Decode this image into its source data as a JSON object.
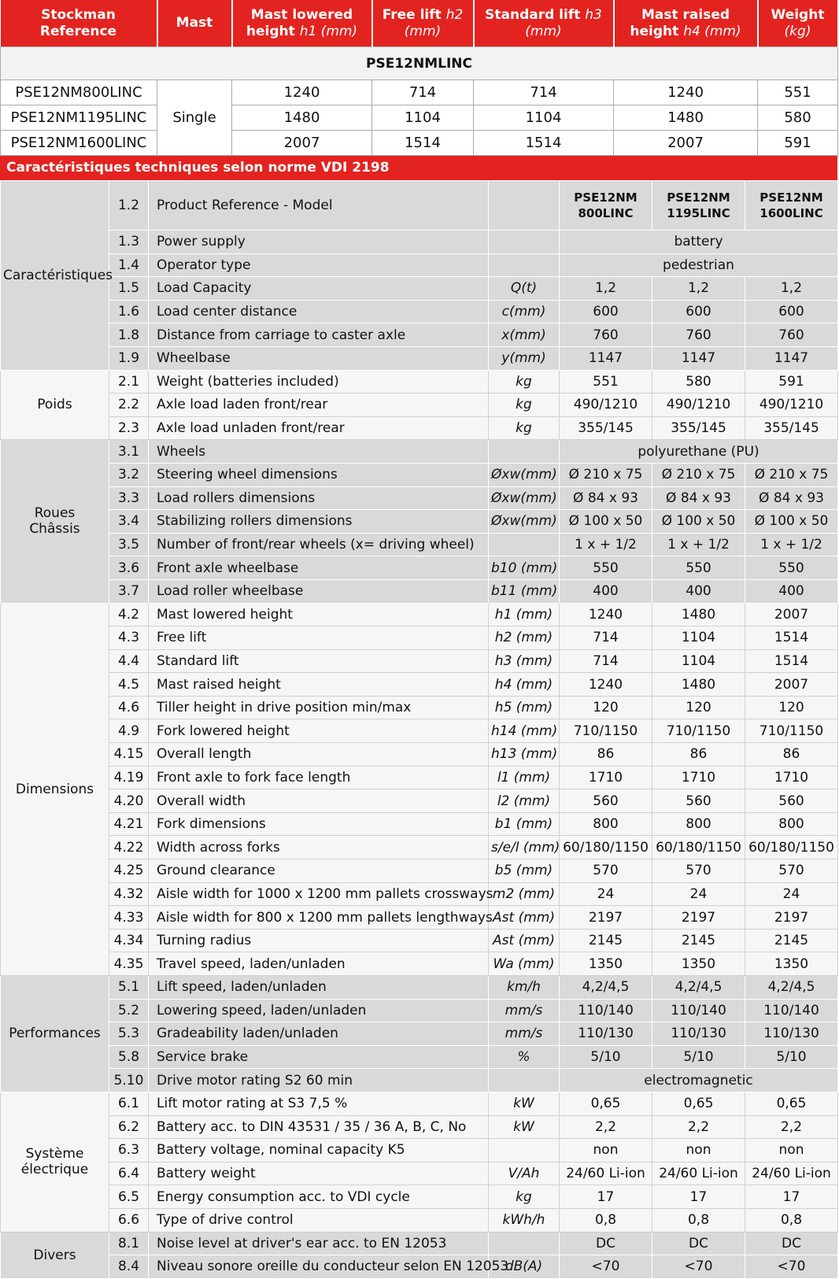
{
  "header": {
    "columns": [
      {
        "title": "Stockman Reference"
      },
      {
        "title": "Mast"
      },
      {
        "title": "Mast lowered height",
        "unit": "h1 (mm)"
      },
      {
        "title": "Free lift",
        "unit": "h2 (mm)"
      },
      {
        "title": "Standard lift",
        "unit": "h3 (mm)"
      },
      {
        "title": "Mast raised height",
        "unit": "h4 (mm)"
      },
      {
        "title": "Weight",
        "unit": "(kg)"
      }
    ]
  },
  "models": {
    "section": "PSE12NMLINC",
    "mast": "Single",
    "rows": [
      {
        "reference": "PSE12NM800LINC",
        "values": [
          "1240",
          "714",
          "714",
          "1240",
          "551"
        ]
      },
      {
        "reference": "PSE12NM1195LINC",
        "values": [
          "1480",
          "1104",
          "1104",
          "1480",
          "580"
        ]
      },
      {
        "reference": "PSE12NM1600LINC",
        "values": [
          "2007",
          "1514",
          "1514",
          "2007",
          "591"
        ]
      }
    ]
  },
  "specs": {
    "title": "Caractéristiques techniques selon norme VDI 2198",
    "groups": [
      {
        "name": "Caractéristiques",
        "rows": [
          {
            "no": "1.2",
            "label": "Product Reference - Model",
            "values": [
              "PSE12NM 800LINC",
              "PSE12NM 1195LINC",
              "PSE12NM 1600LINC"
            ]
          },
          {
            "no": "1.3",
            "label": "Power supply",
            "values": [
              "battery"
            ]
          },
          {
            "no": "1.4",
            "label": "Operator type",
            "values": [
              "pedestrian"
            ]
          },
          {
            "no": "1.5",
            "label": "Load Capacity",
            "unit": "Q(t)",
            "values": [
              "1,2",
              "1,2",
              "1,2"
            ]
          },
          {
            "no": "1.6",
            "label": "Load center distance",
            "unit": "c(mm)",
            "values": [
              "600",
              "600",
              "600"
            ]
          },
          {
            "no": "1.8",
            "label": "Distance from carriage to caster axle",
            "unit": "x(mm)",
            "values": [
              "760",
              "760",
              "760"
            ]
          },
          {
            "no": "1.9",
            "label": "Wheelbase",
            "unit": "y(mm)",
            "values": [
              "1147",
              "1147",
              "1147"
            ]
          }
        ]
      },
      {
        "name": "Poids",
        "rows": [
          {
            "no": "2.1",
            "label": "Weight (batteries included)",
            "unit": "kg",
            "values": [
              "551",
              "580",
              "591"
            ]
          },
          {
            "no": "2.2",
            "label": "Axle load laden front/rear",
            "unit": "kg",
            "values": [
              "490/1210",
              "490/1210",
              "490/1210"
            ]
          },
          {
            "no": "2.3",
            "label": "Axle load unladen front/rear",
            "unit": "kg",
            "values": [
              "355/145",
              "355/145",
              "355/145"
            ]
          }
        ]
      },
      {
        "name": "Roues\nChâssis",
        "rows": [
          {
            "no": "3.1",
            "label": "Wheels",
            "values": [
              "polyurethane (PU)"
            ]
          },
          {
            "no": "3.2",
            "label": "Steering wheel dimensions",
            "unit": "Øxw(mm)",
            "values": [
              "Ø 210 x 75",
              "Ø 210 x 75",
              "Ø 210 x 75"
            ]
          },
          {
            "no": "3.3",
            "label": "Load rollers dimensions",
            "unit": "Øxw(mm)",
            "values": [
              "Ø 84 x 93",
              "Ø 84 x 93",
              "Ø 84 x 93"
            ]
          },
          {
            "no": "3.4",
            "label": "Stabilizing rollers dimensions",
            "unit": "Øxw(mm)",
            "values": [
              "Ø 100 x 50",
              "Ø 100 x 50",
              "Ø 100 x 50"
            ]
          },
          {
            "no": "3.5",
            "label": "Number of front/rear wheels (x= driving wheel)",
            "values": [
              "1 x + 1/2",
              "1 x + 1/2",
              "1 x + 1/2"
            ]
          },
          {
            "no": "3.6",
            "label": "Front axle wheelbase",
            "unit": "b10 (mm)",
            "values": [
              "550",
              "550",
              "550"
            ]
          },
          {
            "no": "3.7",
            "label": "Load roller wheelbase",
            "unit": "b11 (mm)",
            "values": [
              "400",
              "400",
              "400"
            ]
          }
        ]
      },
      {
        "name": "Dimensions",
        "rows": [
          {
            "no": "4.2",
            "label": "Mast lowered height",
            "unit": "h1 (mm)",
            "values": [
              "1240",
              "1480",
              "2007"
            ]
          },
          {
            "no": "4.3",
            "label": "Free lift",
            "unit": "h2 (mm)",
            "values": [
              "714",
              "1104",
              "1514"
            ]
          },
          {
            "no": "4.4",
            "label": "Standard lift",
            "unit": "h3 (mm)",
            "values": [
              "714",
              "1104",
              "1514"
            ]
          },
          {
            "no": "4.5",
            "label": "Mast raised height",
            "unit": "h4 (mm)",
            "values": [
              "1240",
              "1480",
              "2007"
            ]
          },
          {
            "no": "4.6",
            "label": "Tiller height in drive position min/max",
            "unit": "h5 (mm)",
            "values": [
              "120",
              "120",
              "120"
            ]
          },
          {
            "no": "4.9",
            "label": "Fork lowered height",
            "unit": "h14 (mm)",
            "values": [
              "710/1150",
              "710/1150",
              "710/1150"
            ]
          },
          {
            "no": "4.15",
            "label": "Overall length",
            "unit": "h13 (mm)",
            "values": [
              "86",
              "86",
              "86"
            ]
          },
          {
            "no": "4.19",
            "label": "Front axle to fork face length",
            "unit": "l1 (mm)",
            "values": [
              "1710",
              "1710",
              "1710"
            ]
          },
          {
            "no": "4.20",
            "label": "Overall width",
            "unit": "l2 (mm)",
            "values": [
              "560",
              "560",
              "560"
            ]
          },
          {
            "no": "4.21",
            "label": "Fork dimensions",
            "unit": "b1 (mm)",
            "values": [
              "800",
              "800",
              "800"
            ]
          },
          {
            "no": "4.22",
            "label": "Width across forks",
            "unit": "s/e/l (mm)",
            "values": [
              "60/180/1150",
              "60/180/1150",
              "60/180/1150"
            ]
          },
          {
            "no": "4.25",
            "label": "Ground clearance",
            "unit": "b5 (mm)",
            "values": [
              "570",
              "570",
              "570"
            ]
          },
          {
            "no": "4.32",
            "label": "Aisle width for 1000 x 1200 mm pallets crossways",
            "unit": "m2 (mm)",
            "values": [
              "24",
              "24",
              "24"
            ]
          },
          {
            "no": "4.33",
            "label": "Aisle width for 800 x 1200 mm pallets lengthways",
            "unit": "Ast (mm)",
            "values": [
              "2197",
              "2197",
              "2197"
            ]
          },
          {
            "no": "4.34",
            "label": "Turning radius",
            "unit": "Ast (mm)",
            "values": [
              "2145",
              "2145",
              "2145"
            ]
          },
          {
            "no": "4.35",
            "label": "Travel speed, laden/unladen",
            "unit": "Wa (mm)",
            "values": [
              "1350",
              "1350",
              "1350"
            ]
          }
        ]
      },
      {
        "name": "Performances",
        "rows": [
          {
            "no": "5.1",
            "label": "Lift speed, laden/unladen",
            "unit": "km/h",
            "values": [
              "4,2/4,5",
              "4,2/4,5",
              "4,2/4,5"
            ]
          },
          {
            "no": "5.2",
            "label": "Lowering speed, laden/unladen",
            "unit": "mm/s",
            "values": [
              "110/140",
              "110/140",
              "110/140"
            ]
          },
          {
            "no": "5.3",
            "label": "Gradeability laden/unladen",
            "unit": "mm/s",
            "values": [
              "110/130",
              "110/130",
              "110/130"
            ]
          },
          {
            "no": "5.8",
            "label": "Service brake",
            "unit": "%",
            "values": [
              "5/10",
              "5/10",
              "5/10"
            ]
          },
          {
            "no": "5.10",
            "label": "Drive motor rating S2 60 min",
            "values": [
              "electromagnetic"
            ]
          }
        ]
      },
      {
        "name": "Système\nélectrique",
        "rows": [
          {
            "no": "6.1",
            "label": "Lift motor rating at S3 7,5 %",
            "unit": "kW",
            "values": [
              "0,65",
              "0,65",
              "0,65"
            ]
          },
          {
            "no": "6.2",
            "label": "Battery acc. to DIN 43531 / 35 / 36 A, B, C, No",
            "unit": "kW",
            "values": [
              "2,2",
              "2,2",
              "2,2"
            ]
          },
          {
            "no": "6.3",
            "label": "Battery voltage, nominal capacity K5",
            "values": [
              "non",
              "non",
              "non"
            ]
          },
          {
            "no": "6.4",
            "label": "Battery weight",
            "unit": "V/Ah",
            "values": [
              "24/60 Li-ion",
              "24/60 Li-ion",
              "24/60 Li-ion"
            ]
          },
          {
            "no": "6.5",
            "label": "Energy consumption acc. to VDI cycle",
            "unit": "kg",
            "values": [
              "17",
              "17",
              "17"
            ]
          },
          {
            "no": "6.6",
            "label": "Type of drive control",
            "unit": "kWh/h",
            "values": [
              "0,8",
              "0,8",
              "0,8"
            ]
          }
        ]
      },
      {
        "name": "Divers",
        "rows": [
          {
            "no": "8.1",
            "label": "Noise level at driver's ear acc. to EN 12053",
            "values": [
              "DC",
              "DC",
              "DC"
            ]
          },
          {
            "no": "8.4",
            "label": "Niveau sonore oreille du conducteur selon EN 12053",
            "unit": "dB(A)",
            "values": [
              "<70",
              "<70",
              "<70"
            ]
          }
        ]
      }
    ]
  }
}
